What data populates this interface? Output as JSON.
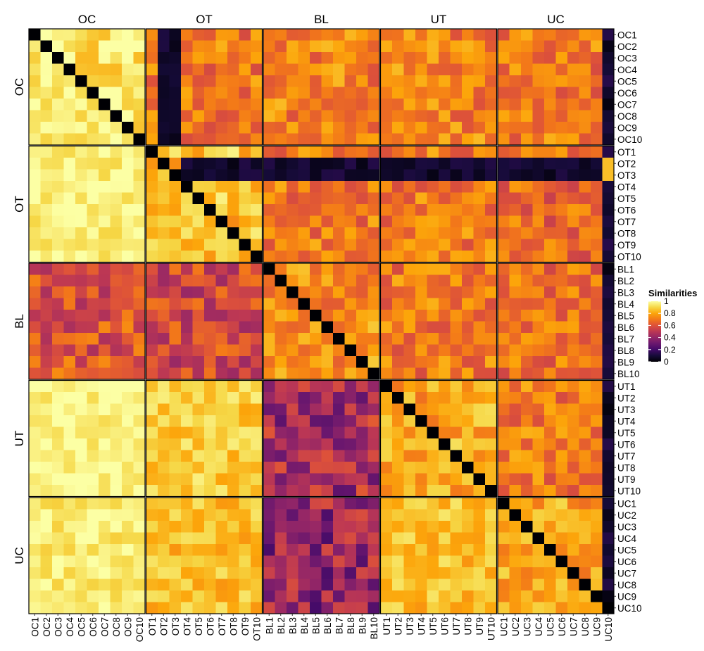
{
  "chart_data": {
    "type": "heatmap",
    "title": "",
    "xlabel": "",
    "ylabel": "",
    "groups": [
      "OC",
      "OT",
      "BL",
      "UT",
      "UC"
    ],
    "items_per_group": 10,
    "row_labels": [
      "OC1",
      "OC2",
      "OC3",
      "OC4",
      "OC5",
      "OC6",
      "OC7",
      "OC8",
      "OC9",
      "OC10",
      "OT1",
      "OT2",
      "OT3",
      "OT4",
      "OT5",
      "OT6",
      "OT7",
      "OT8",
      "OT9",
      "OT10",
      "BL1",
      "BL2",
      "BL3",
      "BL4",
      "BL5",
      "BL6",
      "BL7",
      "BL8",
      "BL9",
      "BL10",
      "UT1",
      "UT2",
      "UT3",
      "UT4",
      "UT5",
      "UT6",
      "UT7",
      "UT8",
      "UT9",
      "UT10",
      "UC1",
      "UC2",
      "UC3",
      "UC4",
      "UC5",
      "UC6",
      "UC7",
      "UC8",
      "UC9",
      "UC10"
    ],
    "col_labels": [
      "OC1",
      "OC2",
      "OC3",
      "OC4",
      "OC5",
      "OC6",
      "OC7",
      "OC8",
      "OC9",
      "OC10",
      "OT1",
      "OT2",
      "OT3",
      "OT4",
      "OT5",
      "OT6",
      "OT7",
      "OT8",
      "OT9",
      "OT10",
      "BL1",
      "BL2",
      "BL3",
      "BL4",
      "BL5",
      "BL6",
      "BL7",
      "BL8",
      "BL9",
      "BL10",
      "UT1",
      "UT2",
      "UT3",
      "UT4",
      "UT5",
      "UT6",
      "UT7",
      "UT8",
      "UT9",
      "UT10",
      "UC1",
      "UC2",
      "UC3",
      "UC4",
      "UC5",
      "UC6",
      "UC7",
      "UC8",
      "UC9",
      "UC10"
    ],
    "value_range": [
      0,
      1
    ],
    "diagonal_value": 0,
    "block_means": [
      [
        0.95,
        0.7,
        0.72,
        0.72,
        0.7
      ],
      [
        0.96,
        0.85,
        0.7,
        0.7,
        0.66
      ],
      [
        0.6,
        0.55,
        0.75,
        0.7,
        0.68
      ],
      [
        0.97,
        0.88,
        0.45,
        0.8,
        0.7
      ],
      [
        0.95,
        0.85,
        0.4,
        0.85,
        0.8
      ]
    ],
    "special_values": {
      "OT2_OT3_rows_in_upper_blocks": 0.08,
      "OT_cols_OT2_OT3_in_OC_rows": 0.08,
      "UC10_column": 0.08,
      "OT2_UC10": 0.85,
      "OT3_UC10": 0.85
    },
    "colorscale": {
      "name": "inferno",
      "stops": [
        [
          0,
          "#000004"
        ],
        [
          0.1,
          "#160b39"
        ],
        [
          0.2,
          "#420a68"
        ],
        [
          0.3,
          "#6a176e"
        ],
        [
          0.4,
          "#932667"
        ],
        [
          0.5,
          "#bc3754"
        ],
        [
          0.6,
          "#dd513a"
        ],
        [
          0.7,
          "#f37819"
        ],
        [
          0.8,
          "#fca50a"
        ],
        [
          0.9,
          "#f6d746"
        ],
        [
          1,
          "#fcffa4"
        ]
      ]
    },
    "legend": {
      "title": "Similarities",
      "position": "right",
      "ticks": [
        "1",
        "0.8",
        "0.6",
        "0.4",
        "0.2",
        "0"
      ]
    },
    "grid": false
  }
}
